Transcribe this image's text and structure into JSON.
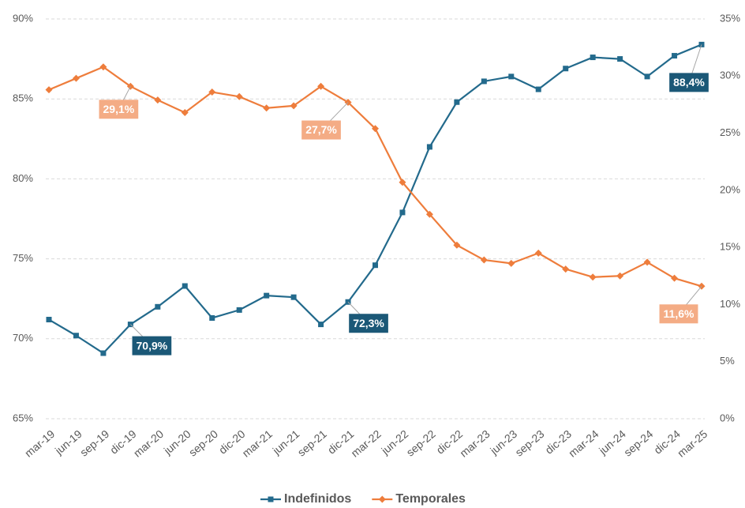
{
  "chart_data": {
    "type": "line",
    "categories": [
      "mar-19",
      "jun-19",
      "sep-19",
      "dic-19",
      "mar-20",
      "jun-20",
      "sep-20",
      "dic-20",
      "mar-21",
      "jun-21",
      "sep-21",
      "dic-21",
      "mar-22",
      "jun-22",
      "sep-22",
      "dic-22",
      "mar-23",
      "jun-23",
      "sep-23",
      "dic-23",
      "mar-24",
      "jun-24",
      "sep-24",
      "dic-24",
      "mar-25"
    ],
    "ylim": [
      65,
      90
    ],
    "yticks": [
      {
        "value": 65,
        "label": "65%"
      },
      {
        "value": 70,
        "label": "70%"
      },
      {
        "value": 75,
        "label": "75%"
      },
      {
        "value": 80,
        "label": "80%"
      },
      {
        "value": 85,
        "label": "85%"
      },
      {
        "value": 90,
        "label": "90%"
      }
    ],
    "y2lim": [
      0,
      35
    ],
    "y2ticks": [
      {
        "value": 0,
        "label": "0%"
      },
      {
        "value": 5,
        "label": "5%"
      },
      {
        "value": 10,
        "label": "10%"
      },
      {
        "value": 15,
        "label": "15%"
      },
      {
        "value": 20,
        "label": "20%"
      },
      {
        "value": 25,
        "label": "25%"
      },
      {
        "value": 30,
        "label": "30%"
      },
      {
        "value": 35,
        "label": "35%"
      }
    ],
    "grid": true,
    "legend": "bottom",
    "series": [
      {
        "name": "Indefinidos",
        "color": "#236a8c",
        "label_color": "#1b5877",
        "marker": "square",
        "values": [
          71.2,
          70.2,
          69.1,
          70.9,
          72.0,
          73.3,
          71.3,
          71.8,
          72.7,
          72.6,
          70.9,
          72.3,
          74.6,
          77.9,
          82.0,
          84.8,
          86.1,
          86.4,
          85.6,
          86.9,
          87.6,
          87.5,
          86.4,
          87.7,
          88.4
        ],
        "value_labels": [
          null,
          null,
          null,
          "70,9%",
          null,
          null,
          null,
          null,
          null,
          null,
          null,
          "72,3%",
          null,
          null,
          null,
          null,
          null,
          null,
          null,
          null,
          null,
          null,
          null,
          null,
          "88,4%"
        ]
      },
      {
        "name": "Temporales",
        "color": "#ee7d3c",
        "label_color": "#f4ac85",
        "marker": "diamond",
        "axis": "y2",
        "values": [
          28.8,
          29.8,
          30.8,
          29.1,
          27.9,
          26.8,
          28.6,
          28.2,
          27.2,
          27.4,
          29.1,
          27.7,
          25.4,
          20.7,
          17.9,
          15.2,
          13.9,
          13.6,
          14.5,
          13.1,
          12.4,
          12.5,
          13.7,
          12.3,
          11.6
        ],
        "value_labels": [
          null,
          null,
          null,
          "29,1%",
          null,
          null,
          null,
          null,
          null,
          null,
          null,
          "27,7%",
          null,
          null,
          null,
          null,
          null,
          null,
          null,
          null,
          null,
          null,
          null,
          null,
          "11,6%"
        ]
      }
    ]
  }
}
